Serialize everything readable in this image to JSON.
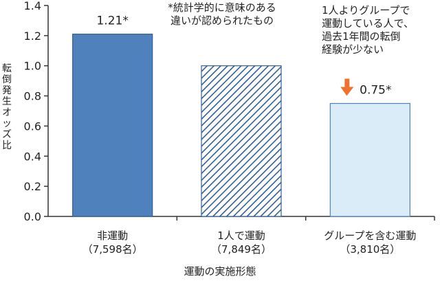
{
  "chart_data": {
    "type": "bar",
    "title": "",
    "xlabel": "運動の実施形態",
    "ylabel": "転倒発生オッズ比",
    "ylim": [
      0.0,
      1.4
    ],
    "yticks": [
      "0.0",
      "0.2",
      "0.4",
      "0.6",
      "0.8",
      "1.0",
      "1.2",
      "1.4"
    ],
    "grid": false,
    "categories": [
      "非運動",
      "1人で運動",
      "グループを含む運動"
    ],
    "category_counts": [
      "（7,598名）",
      "（7,849名）",
      "（3,810名）"
    ],
    "values": [
      1.21,
      1.0,
      0.75
    ],
    "data_labels": [
      "1.21*",
      "",
      "0.75*"
    ],
    "bar_styles": [
      "solid",
      "hatched",
      "light"
    ],
    "colors": {
      "solid_fill": "#4f81bd",
      "solid_stroke": "#2f5f95",
      "hatch_line": "#2f5f95",
      "light_fill": "#d9ecf8",
      "light_stroke": "#4f81bd",
      "arrow": "#f07030",
      "axis": "#333333"
    },
    "annotations": {
      "significance_note": "*統計学的に意味のある\n違いが認められたもの",
      "group_note": "1人よりグループで\n運動している人で、\n過去1年間の転倒\n経験が少ない"
    }
  }
}
